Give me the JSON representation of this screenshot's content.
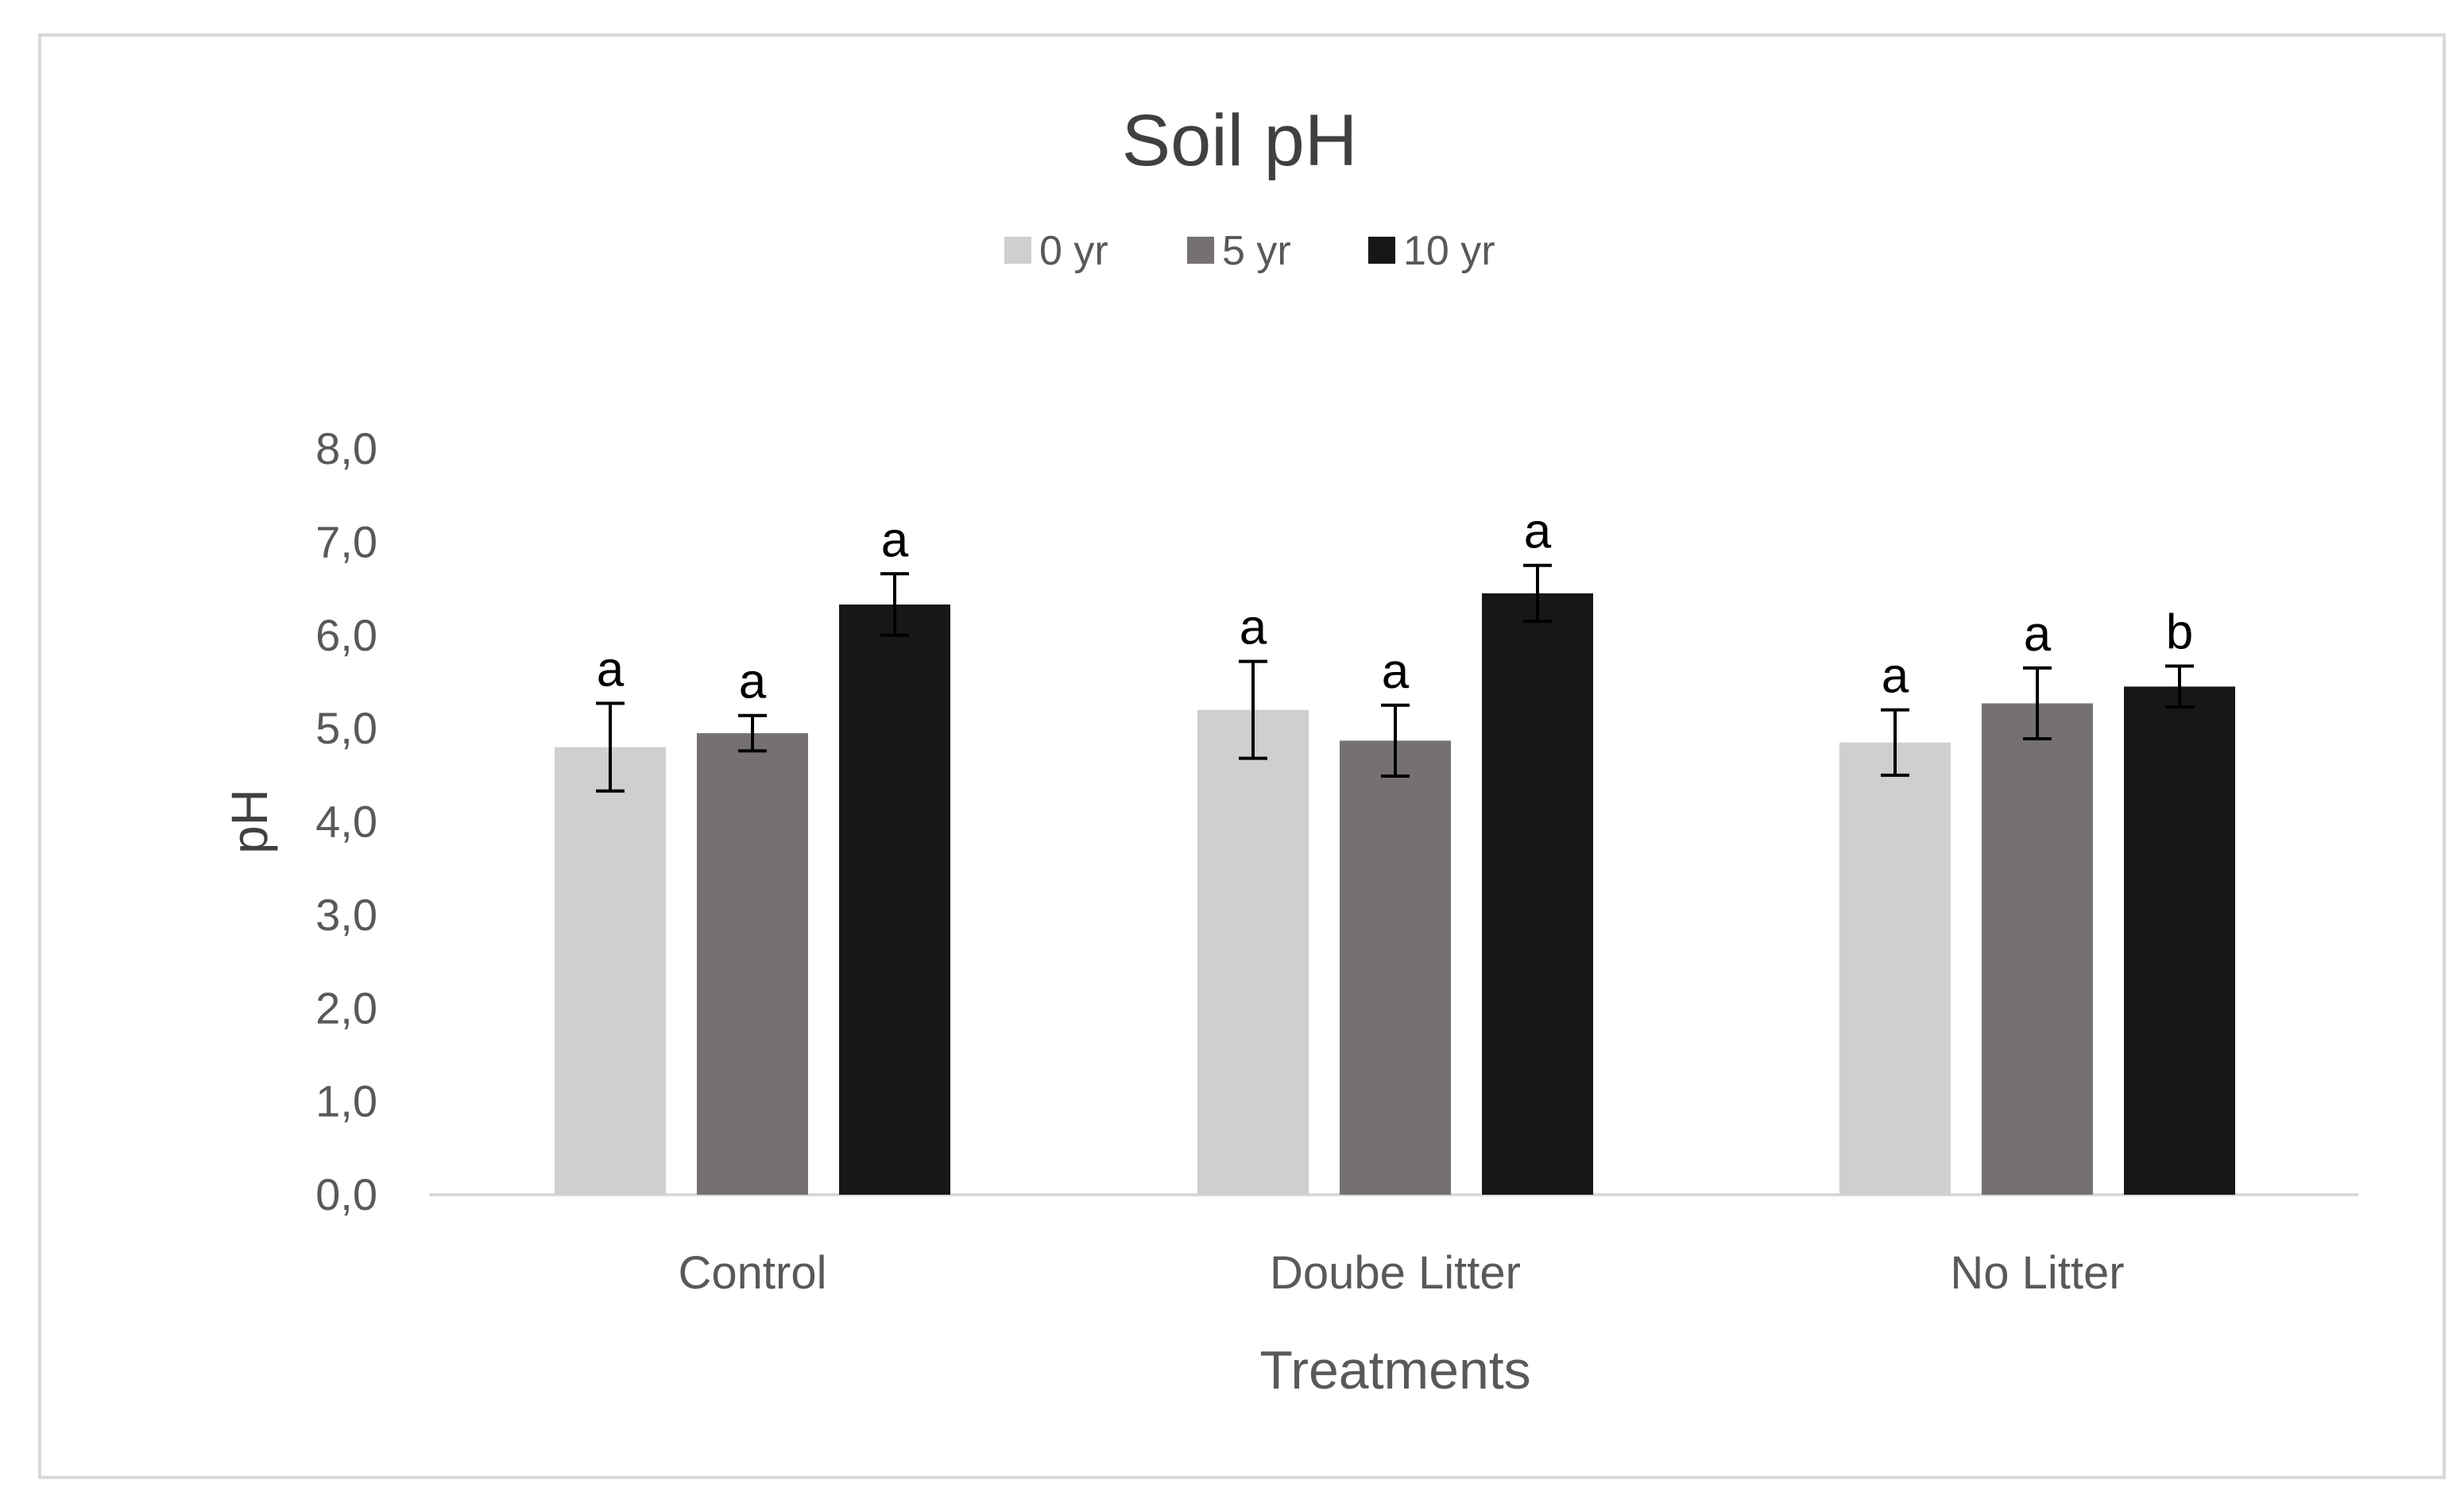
{
  "chart_data": {
    "type": "bar",
    "title": "Soil pH",
    "xlabel": "Treatments",
    "ylabel": "pH",
    "ylim": [
      0,
      8
    ],
    "yticks": [
      "0,0",
      "1,0",
      "2,0",
      "3,0",
      "4,0",
      "5,0",
      "6,0",
      "7,0",
      "8,0"
    ],
    "grid": false,
    "legend_position": "top-center",
    "categories": [
      "Control",
      "Doube Litter",
      "No Litter"
    ],
    "series": [
      {
        "name": "0 yr",
        "color": "#d0cece",
        "values": [
          4.8,
          5.2,
          4.85
        ],
        "errors": [
          0.47,
          0.52,
          0.35
        ],
        "letters": [
          "a",
          "a",
          "a"
        ]
      },
      {
        "name": "5 yr",
        "color": "#767171",
        "values": [
          4.95,
          4.87,
          5.27
        ],
        "errors": [
          0.19,
          0.38,
          0.38
        ],
        "letters": [
          "a",
          "a",
          "a"
        ]
      },
      {
        "name": "10 yr",
        "color": "#171717",
        "values": [
          6.33,
          6.45,
          5.45
        ],
        "errors": [
          0.33,
          0.3,
          0.22
        ],
        "letters": [
          "a",
          "a",
          "b"
        ]
      }
    ]
  }
}
